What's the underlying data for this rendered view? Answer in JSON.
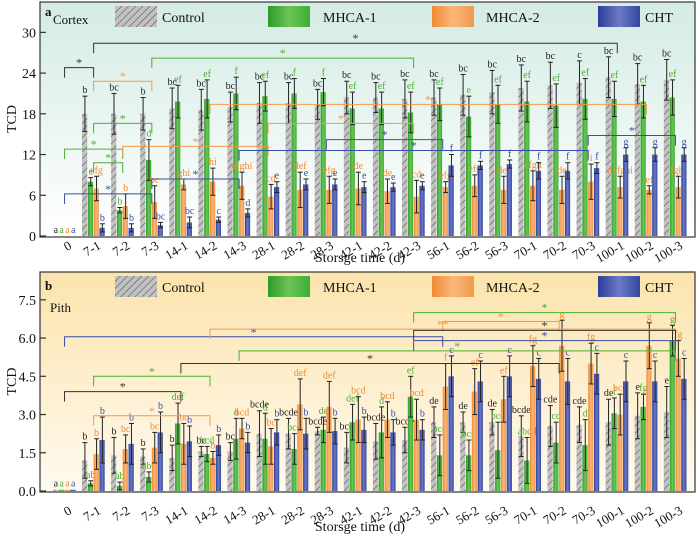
{
  "chart_data": [
    {
      "type": "bar",
      "panel": "a",
      "title": "Cortex",
      "xlabel": "Storsge time (d)",
      "ylabel": "TCD",
      "ylim": [
        0,
        33
      ],
      "yticks": [
        0,
        6,
        12,
        18,
        24,
        30
      ],
      "ytick_labels": [
        "0",
        "6",
        "12",
        "18",
        "24",
        "30"
      ],
      "grid": false,
      "legend_position": "top",
      "categories": [
        "0",
        "7-1",
        "7-2",
        "7-3",
        "14-1",
        "14-2",
        "14-3",
        "28-1",
        "28-2",
        "28-3",
        "42-1",
        "42-2",
        "42-3",
        "56-1",
        "56-2",
        "56-3",
        "70-1",
        "70-2",
        "70-3",
        "100-1",
        "100-2",
        "100-3"
      ],
      "series": [
        {
          "name": "Control",
          "color": "#b9b9b9",
          "values": [
            0,
            18,
            18,
            18,
            18.8,
            18.6,
            19,
            19.6,
            19.6,
            19.4,
            20.4,
            20.4,
            20.2,
            20.4,
            20.8,
            21.2,
            21.8,
            22.2,
            22.6,
            23.4,
            22.4,
            23
          ],
          "errors": [
            0,
            2.6,
            3,
            2.4,
            3,
            3,
            2.2,
            3,
            3,
            2.2,
            2.4,
            2.2,
            2.8,
            2.6,
            3,
            3.2,
            3.4,
            3.4,
            3.2,
            3,
            3,
            3
          ],
          "letters": [
            "a",
            "b",
            "bc",
            "b",
            "bc",
            "bc",
            "bc",
            "bc",
            "bc",
            "bc",
            "bc",
            "bc",
            "bc",
            "bc",
            "bc",
            "bc",
            "bc",
            "bc",
            "c",
            "bc",
            "bc",
            "bc"
          ]
        },
        {
          "name": "MHCA-1",
          "color": "#4caf33",
          "values": [
            0,
            8,
            3.8,
            11.2,
            19.8,
            20.2,
            21,
            20.6,
            21,
            21.2,
            18.8,
            18.8,
            18.2,
            19.4,
            17.6,
            19.4,
            19.8,
            19.2,
            20.2,
            20.2,
            19.8,
            20.4
          ],
          "errors": [
            0,
            0.6,
            0.4,
            3,
            2.4,
            2.8,
            2.4,
            2.2,
            2.2,
            2,
            2.4,
            2.4,
            3,
            2.4,
            3,
            2.8,
            3,
            3.2,
            3,
            2.6,
            2.4,
            2.6
          ],
          "letters": [
            "a",
            "e",
            "b",
            "d",
            "ef",
            "ef",
            "f",
            "ef",
            "f",
            "f",
            "ef",
            "ef",
            "ef",
            "ef",
            "e",
            "ef",
            "ef",
            "ef",
            "ef",
            "ef",
            "ef",
            "ef"
          ]
        },
        {
          "name": "MHCA-2",
          "color": "#f29a4a",
          "values": [
            0,
            7,
            4.4,
            5,
            7.6,
            8,
            7.4,
            5.8,
            6.8,
            6.8,
            7,
            6.6,
            5.8,
            7.2,
            7.4,
            6.8,
            7.4,
            6.8,
            8,
            7.2,
            6.8,
            7.2
          ],
          "errors": [
            0,
            1.8,
            1.8,
            2.4,
            0.8,
            2,
            2,
            1.8,
            2.6,
            2,
            2.4,
            1.8,
            2.4,
            0.8,
            1.6,
            2,
            2.2,
            2,
            2.6,
            1.6,
            0.6,
            1.6
          ],
          "letters": [
            "a",
            "efg",
            "b",
            "bc",
            "ghi",
            "hi",
            "efghi",
            "cd",
            "def",
            "efg",
            "de",
            "de",
            "cd",
            "efg",
            "efg",
            "def",
            "efgh",
            "de",
            "i",
            "defghi",
            "ef",
            "fghi"
          ]
        },
        {
          "name": "CHT",
          "color": "#3a4da8",
          "values": [
            0,
            1.2,
            1.2,
            1.6,
            2,
            2.4,
            3.4,
            7.2,
            7.6,
            7.6,
            7.2,
            7.2,
            7.4,
            10.4,
            10.4,
            10.6,
            9.6,
            9.6,
            10,
            12,
            12,
            12
          ],
          "errors": [
            0,
            0.6,
            0.6,
            0.4,
            0.8,
            0.4,
            0.6,
            0.8,
            0.8,
            0.8,
            0.8,
            0.6,
            0.6,
            1.6,
            0.6,
            0.6,
            1.2,
            1.2,
            0.8,
            1,
            1,
            1
          ],
          "letters": [
            "a",
            "b",
            "b",
            "bc",
            "bc",
            "c",
            "d",
            "e",
            "e",
            "e",
            "e",
            "e",
            "e",
            "f",
            "f",
            "f",
            "f",
            "f",
            "f",
            "g",
            "g",
            "g"
          ]
        }
      ],
      "significance_brackets": [
        {
          "color": "#333333",
          "label": "*",
          "from": "0",
          "to": "7-1",
          "level": 24.8
        },
        {
          "color": "#333333",
          "label": "*",
          "from": "7-1",
          "to": "100-1",
          "level": 28.4
        },
        {
          "color": "#f29a4a",
          "label": "*",
          "from": "7-1",
          "to": "7-3",
          "level": 22.8
        },
        {
          "color": "#4caf33",
          "label": "*",
          "from": "7-3",
          "to": "42-3",
          "level": 26.2
        },
        {
          "color": "#4caf33",
          "label": "*",
          "from": "7-1",
          "to": "7-3",
          "level": 16.6
        },
        {
          "color": "#4caf33",
          "label": "*",
          "from": "0",
          "to": "7-2",
          "level": 12.8
        },
        {
          "color": "#4caf33",
          "label": "*",
          "from": "7-1",
          "to": "7-2",
          "level": 10.8
        },
        {
          "color": "#f29a4a",
          "label": "*",
          "from": "7-2",
          "to": "28-1",
          "level": 13.2
        },
        {
          "color": "#f29a4a",
          "label": "*",
          "from": "14-2",
          "to": "100-2",
          "level": 19.4
        },
        {
          "color": "#f29a4a",
          "label": "*",
          "from": "28-1",
          "to": "42-3",
          "level": 16.6
        },
        {
          "color": "#3a4da8",
          "label": "*",
          "from": "0",
          "to": "7-3",
          "level": 6.2
        },
        {
          "color": "#3a4da8",
          "label": "*",
          "from": "7-3",
          "to": "14-3",
          "level": 8.4
        },
        {
          "color": "#3a4da8",
          "label": "*",
          "from": "14-3",
          "to": "70-3",
          "level": 12.6
        },
        {
          "color": "#3a4da8",
          "label": "*",
          "from": "28-3",
          "to": "56-1",
          "level": 14.2
        },
        {
          "color": "#3a4da8",
          "label": "*",
          "from": "70-3",
          "to": "100-3",
          "level": 14.8
        }
      ]
    },
    {
      "type": "bar",
      "panel": "b",
      "title": "Pith",
      "xlabel": "Storsge time (d)",
      "ylabel": "TCD",
      "ylim": [
        0,
        8.2
      ],
      "yticks": [
        0,
        1.5,
        3.0,
        4.5,
        6.0,
        7.5
      ],
      "ytick_labels": [
        "0.0",
        "1.5",
        "3.0",
        "4.5",
        "6.0",
        "7.5"
      ],
      "grid": false,
      "legend_position": "top",
      "categories": [
        "0",
        "7-1",
        "7-2",
        "7-3",
        "14-1",
        "14-2",
        "14-3",
        "28-1",
        "28-2",
        "28-3",
        "42-1",
        "42-2",
        "42-3",
        "56-1",
        "56-2",
        "56-3",
        "70-1",
        "70-2",
        "70-3",
        "100-1",
        "100-2",
        "100-3"
      ],
      "series": [
        {
          "name": "Control",
          "color": "#b9b9b9",
          "values": [
            0.05,
            1.2,
            1.4,
            1.35,
            1.3,
            1.55,
            1.55,
            2.25,
            2.25,
            2.35,
            1.7,
            1.95,
            2.0,
            2.7,
            2.7,
            2.7,
            2.15,
            2.55,
            2.6,
            2.7,
            2.95,
            3.1
          ],
          "errors": [
            0,
            0.7,
            0.7,
            0.3,
            0.5,
            0.2,
            0.35,
            0.9,
            0.6,
            0.15,
            0.6,
            0.7,
            0.5,
            0.6,
            0.4,
            0.5,
            0.8,
            0.8,
            0.7,
            0.9,
            0.9,
            1.0
          ],
          "letters": [
            "a",
            "b",
            "b",
            "b",
            "b",
            "bc",
            "bc",
            "bcde",
            "bcde",
            "bcde",
            "bcd",
            "bcde",
            "bcde",
            "de",
            "de",
            "de",
            "bcde",
            "cde",
            "cde",
            "de",
            "e",
            "e"
          ]
        },
        {
          "name": "MHCA-1",
          "color": "#4caf33",
          "values": [
            0.05,
            0.3,
            0.2,
            0.55,
            2.65,
            1.45,
            2.05,
            2.05,
            1.65,
            2.4,
            2.7,
            2.3,
            3.7,
            1.4,
            1.4,
            1.6,
            1.2,
            1.9,
            1.8,
            3.05,
            3.3,
            5.9
          ],
          "errors": [
            0,
            0.1,
            0.15,
            0.2,
            0.8,
            0.3,
            0.8,
            1.0,
            0.6,
            0.5,
            0.7,
            1.0,
            0.8,
            0.8,
            0.6,
            1.1,
            0.9,
            0.8,
            1.0,
            0.6,
            0.5,
            0.6
          ],
          "letters": [
            "a",
            "ab",
            "ab",
            "abc",
            "def",
            "bcd",
            "d",
            "d",
            "bcd",
            "de",
            "def",
            "d",
            "ef",
            "bcd",
            "bcd",
            "bcd",
            "abcd",
            "cd",
            "d",
            "f",
            "fg",
            "g"
          ]
        },
        {
          "name": "MHCA-2",
          "color": "#f29a4a",
          "values": [
            0.05,
            1.45,
            1.65,
            1.7,
            1.85,
            1.3,
            2.45,
            1.75,
            3.4,
            3.3,
            2.8,
            2.8,
            2.8,
            4.1,
            3.9,
            3.6,
            4.9,
            5.7,
            5.0,
            3.0,
            5.7,
            5.2
          ],
          "errors": [
            0,
            0.6,
            0.55,
            0.6,
            0.8,
            0.25,
            0.4,
            0.7,
            1.0,
            1.0,
            0.9,
            0.7,
            0.8,
            0.9,
            0.9,
            0.9,
            0.8,
            1.0,
            0.8,
            0.8,
            0.9,
            0.7
          ],
          "letters": [
            "a",
            "b",
            "bc",
            "bc",
            "bc",
            "b",
            "bcd",
            "bc",
            "def",
            "def",
            "bcd",
            "bcd",
            "bcd",
            "f",
            "ef",
            "ef",
            "fg",
            "g",
            "fg",
            "bcd",
            "g",
            "fg"
          ]
        },
        {
          "name": "CHT",
          "color": "#3a4da8",
          "values": [
            0.05,
            2.0,
            1.85,
            2.3,
            1.95,
            1.8,
            1.9,
            2.3,
            2.25,
            2.35,
            2.4,
            2.3,
            2.4,
            4.5,
            4.3,
            4.5,
            4.4,
            4.3,
            4.6,
            4.3,
            4.3,
            4.4
          ],
          "errors": [
            0,
            0.9,
            0.8,
            0.8,
            0.6,
            0.4,
            0.4,
            0.5,
            0.6,
            0.5,
            0.5,
            0.5,
            0.4,
            0.8,
            0.8,
            0.8,
            0.8,
            0.9,
            0.8,
            0.8,
            0.8,
            0.8
          ],
          "letters": [
            "a",
            "b",
            "b",
            "b",
            "b",
            "b",
            "b",
            "b",
            "b",
            "b",
            "b",
            "b",
            "b",
            "c",
            "c",
            "c",
            "c",
            "c",
            "c",
            "c",
            "c",
            "c"
          ]
        }
      ],
      "significance_brackets": [
        {
          "color": "#3a4da8",
          "label": "*",
          "from": "0",
          "to": "56-1",
          "level": 6.05
        },
        {
          "color": "#f29a4a",
          "label": "**",
          "from": "14-2",
          "to": "100-3",
          "level": 6.35
        },
        {
          "color": "#4caf33",
          "label": "*",
          "from": "14-3",
          "to": "100-3",
          "level": 5.5
        },
        {
          "color": "#333333",
          "label": "*",
          "from": "14-1",
          "to": "70-2",
          "level": 5.0
        },
        {
          "color": "#4caf33",
          "label": "*",
          "from": "7-1",
          "to": "14-2",
          "level": 4.5
        },
        {
          "color": "#333333",
          "label": "*",
          "from": "0",
          "to": "14-1",
          "level": 3.9
        },
        {
          "color": "#f29a4a",
          "label": "*",
          "from": "7-1",
          "to": "14-2",
          "level": 2.95
        },
        {
          "color": "#4caf33",
          "label": "*",
          "from": "42-3",
          "to": "100-3",
          "level": 7.0
        },
        {
          "color": "#f29a4a",
          "label": "*",
          "from": "56-1",
          "to": "70-2",
          "level": 6.65
        },
        {
          "color": "#333333",
          "label": "*",
          "from": "42-3",
          "to": "100-3",
          "level": 6.3
        },
        {
          "color": "#3a4da8",
          "label": "*",
          "from": "42-3",
          "to": "100-3",
          "level": 5.9
        }
      ]
    }
  ]
}
